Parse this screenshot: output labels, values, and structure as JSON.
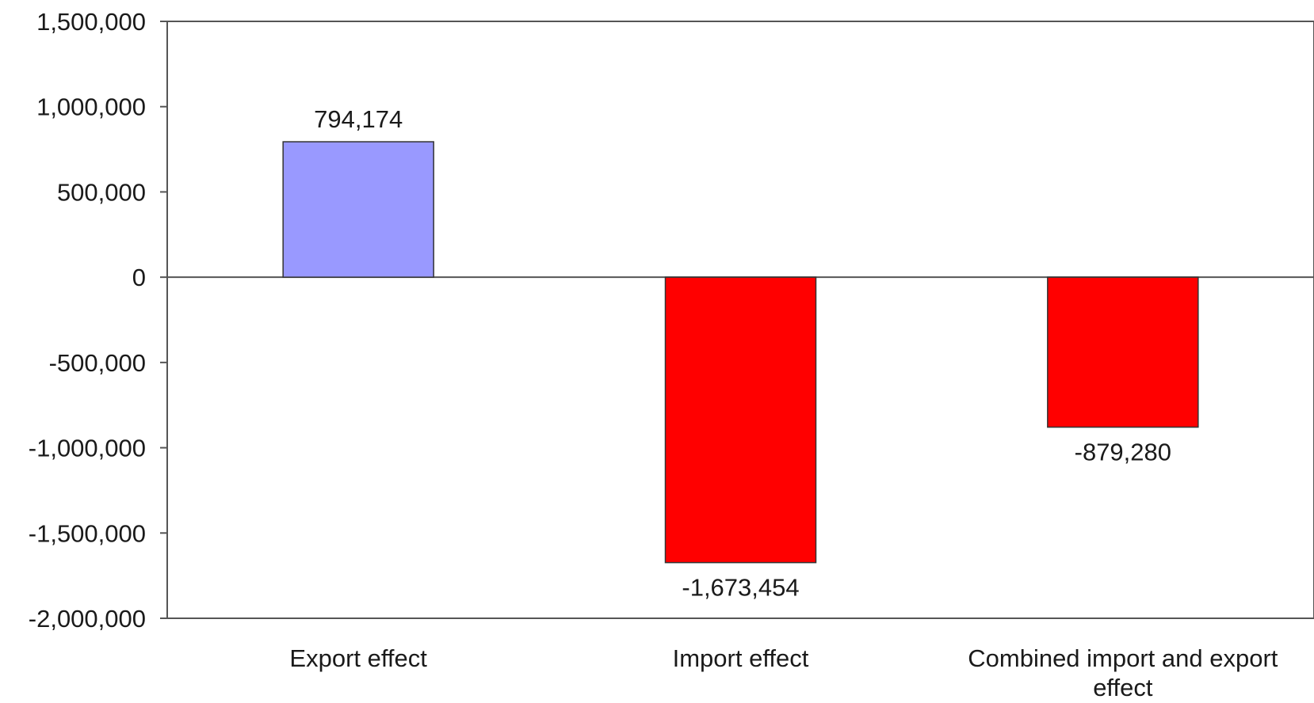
{
  "chart_data": {
    "type": "bar",
    "title": "",
    "xlabel": "",
    "ylabel": "",
    "ylim": [
      -2000000,
      1500000
    ],
    "yticks": [
      1500000,
      1000000,
      500000,
      0,
      -500000,
      -1000000,
      -1500000,
      -2000000
    ],
    "ytick_labels": [
      "1,500,000",
      "1,000,000",
      "500,000",
      "0",
      "-500,000",
      "-1,000,000",
      "-1,500,000",
      "-2,000,000"
    ],
    "categories": [
      "Export effect",
      "Import effect",
      "Combined import and  export effect"
    ],
    "category_lines": [
      [
        "Export effect"
      ],
      [
        "Import effect"
      ],
      [
        "Combined import and  export",
        "effect"
      ]
    ],
    "values": [
      794174,
      -1673454,
      -879280
    ],
    "data_labels": [
      "794,174",
      "-1,673,454",
      "-879,280"
    ],
    "bar_colors": [
      "#9999ff",
      "#ff0000",
      "#ff0000"
    ],
    "grid": false,
    "legend": "none"
  }
}
